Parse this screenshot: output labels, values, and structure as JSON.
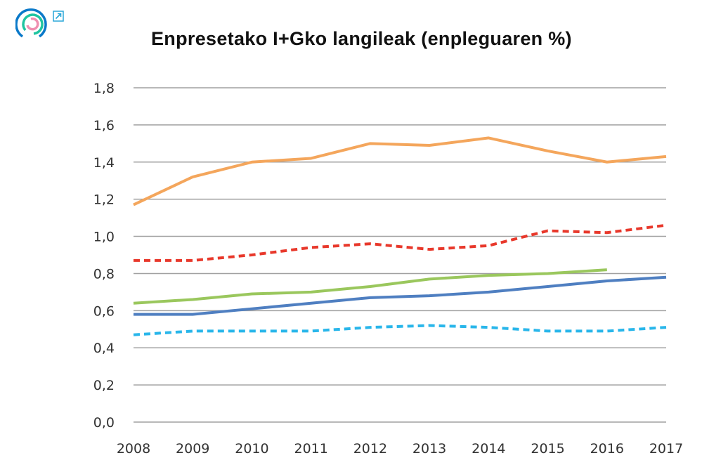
{
  "chart_data": {
    "type": "line",
    "title": "Enpresetako I+Gko langileak (enpleguaren %)",
    "xlabel": "",
    "ylabel": "",
    "x": [
      "2008",
      "2009",
      "2010",
      "2011",
      "2012",
      "2013",
      "2014",
      "2015",
      "2016",
      "2017"
    ],
    "ylim": [
      0,
      1.8
    ],
    "yticks": [
      "0,0",
      "0,2",
      "0,4",
      "0,6",
      "0,8",
      "1,0",
      "1,2",
      "1,4",
      "1,6",
      "1,8"
    ],
    "grid": true,
    "legend": "none",
    "series": [
      {
        "color": "#f4a65c",
        "dash": false,
        "values": [
          1.17,
          1.32,
          1.4,
          1.42,
          1.5,
          1.49,
          1.53,
          1.46,
          1.4,
          1.43
        ]
      },
      {
        "color": "#e8382b",
        "dash": true,
        "values": [
          0.87,
          0.87,
          0.9,
          0.94,
          0.96,
          0.93,
          0.95,
          1.03,
          1.02,
          1.06
        ]
      },
      {
        "color": "#9ac75d",
        "dash": false,
        "values": [
          0.64,
          0.66,
          0.69,
          0.7,
          0.73,
          0.77,
          0.79,
          0.8,
          0.82,
          null
        ]
      },
      {
        "color": "#4f7fc1",
        "dash": false,
        "values": [
          0.58,
          0.58,
          0.61,
          0.64,
          0.67,
          0.68,
          0.7,
          0.73,
          0.76,
          0.78
        ]
      },
      {
        "color": "#29b6ea",
        "dash": true,
        "values": [
          0.47,
          0.49,
          0.49,
          0.49,
          0.51,
          0.52,
          0.51,
          0.49,
          0.49,
          0.51
        ]
      }
    ]
  },
  "icons": {
    "logo": "circular-rings-logo",
    "external": "external-link-icon"
  }
}
